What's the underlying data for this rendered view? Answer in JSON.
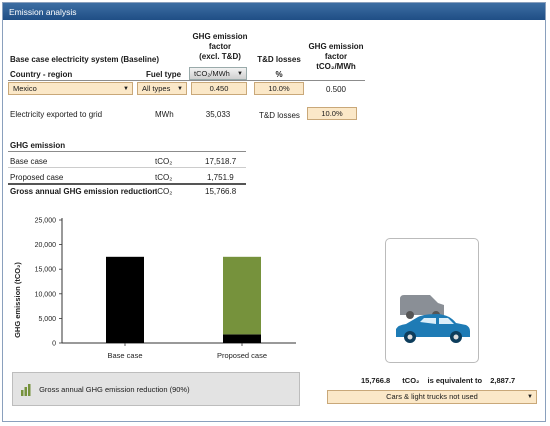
{
  "window": {
    "title": "Emission analysis"
  },
  "headers": {
    "baseline_title": "Base case electricity system (Baseline)",
    "country_region": "Country - region",
    "fuel_type": "Fuel type",
    "ghg_factor_line1": "GHG emission",
    "ghg_factor_line2": "factor",
    "ghg_factor_line3": "(excl. T&D)",
    "td_losses": "T&D losses",
    "td_losses_unit": "%",
    "ghg_factor2_line1": "GHG emission",
    "ghg_factor2_line2": "factor",
    "ghg_factor2_unit": "tCO₂/MWh"
  },
  "row": {
    "country": "Mexico",
    "fuel_type": "All types",
    "unit_select": "tCO₂/MWh",
    "ghg_factor": "0.450",
    "td_losses": "10.0%",
    "ghg_factor_total": "0.500"
  },
  "export": {
    "label": "Electricity exported to grid",
    "unit": "MWh",
    "value": "35,033",
    "td_label": "T&D losses",
    "td_value": "10.0%"
  },
  "ghg": {
    "title": "GHG emission",
    "base_label": "Base case",
    "base_unit": "tCO₂",
    "base_value": "17,518.7",
    "proposed_label": "Proposed case",
    "proposed_unit": "tCO₂",
    "proposed_value": "1,751.9",
    "reduction_label": "Gross annual GHG emission reduction",
    "reduction_unit": "tCO₂",
    "reduction_value": "15,766.8"
  },
  "chart_data": {
    "type": "bar",
    "ylabel": "GHG emission (tCO₂)",
    "ylim": [
      0,
      25000
    ],
    "yticks": [
      "25,000",
      "20,000",
      "15,000",
      "10,000",
      "5,000",
      "0"
    ],
    "categories": [
      "Base case",
      "Proposed case"
    ],
    "series": [
      {
        "name": "",
        "values": [
          17518.7,
          1751.9
        ],
        "color": "#000000"
      },
      {
        "name": "Gross annual GHG emission reduction (90%)",
        "values": [
          0,
          15766.8
        ],
        "color": "#76923c"
      }
    ]
  },
  "legend": {
    "label": "Gross annual GHG emission reduction (90%)"
  },
  "equivalence": {
    "value": "15,766.8",
    "unit": "tCO₂",
    "text": "is equivalent to",
    "result": "2,887.7",
    "select": "Cars & light trucks not used"
  },
  "colors": {
    "accent": "#1f4e85",
    "field_bg": "#fbe8c8",
    "bar_black": "#000000",
    "bar_green": "#76923c",
    "car_blue": "#1e7bb5",
    "van_grey": "#8a8f96"
  }
}
